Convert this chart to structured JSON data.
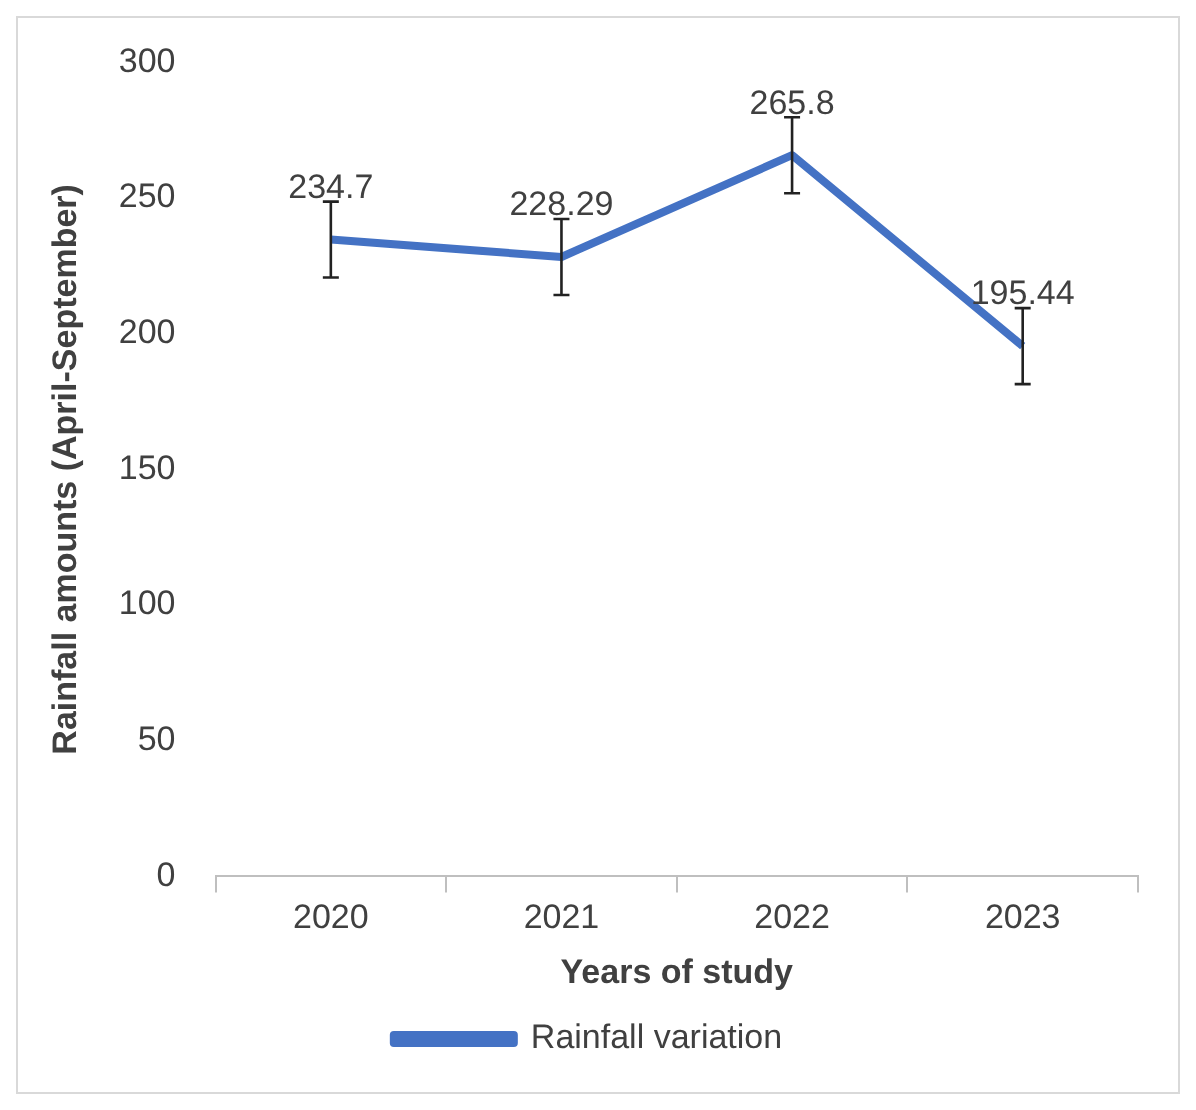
{
  "chart_data": {
    "type": "line",
    "xlabel": "Years of study",
    "ylabel": "Rainfall amounts (April-September)",
    "categories": [
      "2020",
      "2021",
      "2022",
      "2023"
    ],
    "series": [
      {
        "name": "Rainfall variation",
        "color": "#4472c4",
        "values": [
          234.7,
          228.29,
          265.8,
          195.44
        ],
        "errors": [
          14,
          14,
          14,
          14
        ]
      }
    ],
    "ylim": [
      0,
      300
    ],
    "yticks": [
      0,
      50,
      100,
      150,
      200,
      250,
      300
    ],
    "grid": false,
    "legend": "bottom",
    "marker": "none",
    "line_style": "solid",
    "data_labels": true
  }
}
